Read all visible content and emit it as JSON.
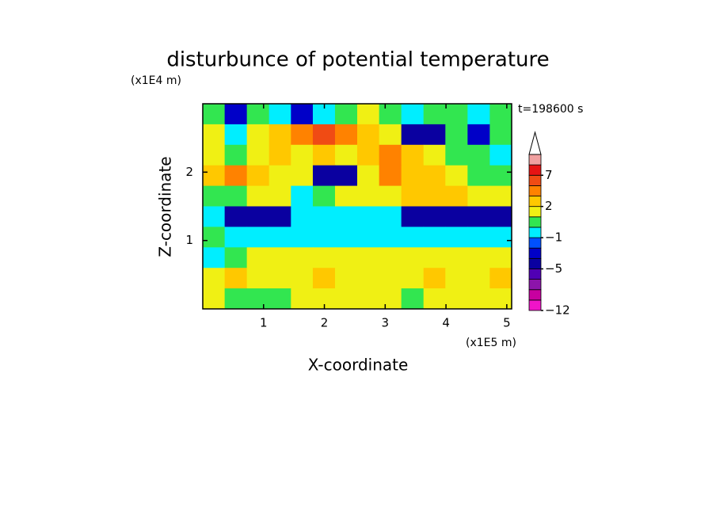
{
  "chart_data": {
    "type": "contour",
    "title": "disturbunce of potential temperature",
    "x_label": "X-coordinate",
    "y_label": "Z-coordinate",
    "x_unit": "(x1E5 m)",
    "y_unit": "(x1E4 m)",
    "annotation": "t=198600 s",
    "xlim": [
      0,
      5.08
    ],
    "ylim": [
      0,
      3
    ],
    "xticks": [
      1,
      2,
      3,
      4,
      5
    ],
    "yticks": [
      1,
      2
    ],
    "x": [
      0.18,
      0.54,
      0.91,
      1.27,
      1.63,
      1.99,
      2.36,
      2.72,
      3.08,
      3.45,
      3.81,
      4.17,
      4.54,
      4.9
    ],
    "y": [
      2.85,
      2.55,
      2.25,
      1.95,
      1.65,
      1.35,
      1.05,
      0.75,
      0.45,
      0.15
    ],
    "z": [
      [
        0.5,
        -4,
        0.5,
        -0.5,
        -4,
        -0.5,
        0.5,
        1.5,
        0.5,
        -0.5,
        0.5,
        0.5,
        -0.5,
        0.5
      ],
      [
        1.5,
        -0.5,
        1.5,
        2.5,
        4,
        6,
        4,
        2.5,
        1.5,
        -4.5,
        -4.5,
        0.5,
        -3.5,
        0.5
      ],
      [
        1.5,
        0.5,
        1.5,
        2.5,
        1.5,
        2.5,
        1.5,
        2.5,
        4,
        2.5,
        1.5,
        0.5,
        0.5,
        -0.5
      ],
      [
        2.5,
        4,
        2.5,
        1.5,
        1.5,
        -4.5,
        -4.5,
        1.5,
        4,
        2.5,
        2.5,
        1.5,
        0.5,
        0.5
      ],
      [
        0.5,
        0.5,
        1.5,
        1.5,
        -0.5,
        0.5,
        1.5,
        1.5,
        1.5,
        2.5,
        2.5,
        2.5,
        1.5,
        1.5
      ],
      [
        -0.5,
        -4.5,
        -4.5,
        -4.5,
        -0.5,
        -0.5,
        -0.5,
        -0.5,
        -0.5,
        -4.5,
        -4.5,
        -4.5,
        -4.5,
        -4.5
      ],
      [
        0.5,
        -0.5,
        -0.5,
        -0.5,
        -0.5,
        -0.5,
        -0.5,
        -0.5,
        -0.5,
        -0.5,
        -0.5,
        -0.5,
        -0.5,
        -0.5
      ],
      [
        -0.5,
        0.5,
        1.5,
        1.5,
        1.5,
        1.5,
        1.5,
        1.5,
        1.5,
        1.5,
        1.5,
        1.5,
        1.5,
        1.5
      ],
      [
        1.5,
        2.5,
        1.5,
        1.5,
        1.5,
        2.5,
        1.5,
        1.5,
        1.5,
        1.5,
        2.5,
        1.5,
        1.5,
        2.5
      ],
      [
        1.5,
        0.5,
        0.5,
        0.5,
        1.5,
        1.5,
        1.5,
        1.5,
        1.5,
        0.5,
        1.5,
        1.5,
        1.5,
        1.5
      ]
    ],
    "levels": [
      -12,
      -10,
      -8,
      -6,
      -5,
      -4,
      -3,
      -1,
      0,
      1,
      2,
      3,
      5,
      7,
      9,
      11
    ],
    "colors": [
      "#f014c8",
      "#c800a0",
      "#8c14aa",
      "#5000b4",
      "#0a00a0",
      "#0000c8",
      "#0050ff",
      "#00eeff",
      "#32e650",
      "#f0f014",
      "#ffc800",
      "#ff8200",
      "#f04b14",
      "#e61414",
      "#f0a0a0"
    ],
    "colorbar_ticks": [
      {
        "value": 7,
        "label": "7"
      },
      {
        "value": 2,
        "label": "2"
      },
      {
        "value": -1,
        "label": "−1"
      },
      {
        "value": -5,
        "label": "−5"
      },
      {
        "value": -12,
        "label": "−12"
      }
    ]
  }
}
